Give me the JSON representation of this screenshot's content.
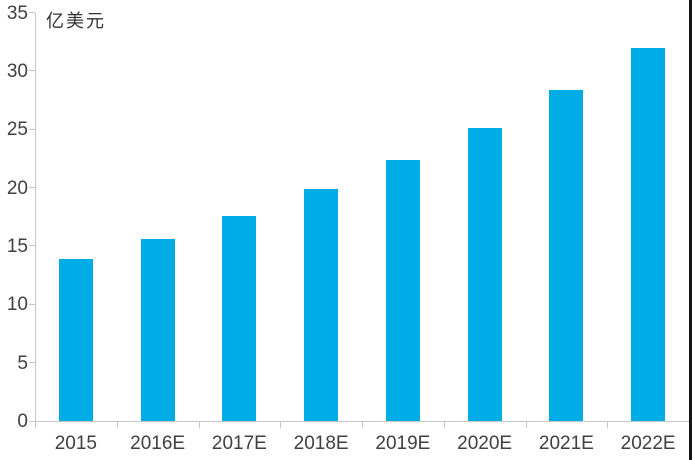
{
  "chart_data": {
    "type": "bar",
    "ylabel": "亿美元",
    "categories": [
      "2015",
      "2016E",
      "2017E",
      "2018E",
      "2019E",
      "2020E",
      "2021E",
      "2022E"
    ],
    "values": [
      13.9,
      15.6,
      17.6,
      19.9,
      22.4,
      25.1,
      28.4,
      32.0
    ],
    "yticks": [
      0,
      5,
      10,
      15,
      20,
      25,
      30,
      35
    ],
    "ylim": [
      0,
      35
    ],
    "grid": false,
    "legend": "none",
    "bar_color": "#00ACE6",
    "axis_color": "#c6c6c6",
    "tick_label_color": "#404040"
  }
}
